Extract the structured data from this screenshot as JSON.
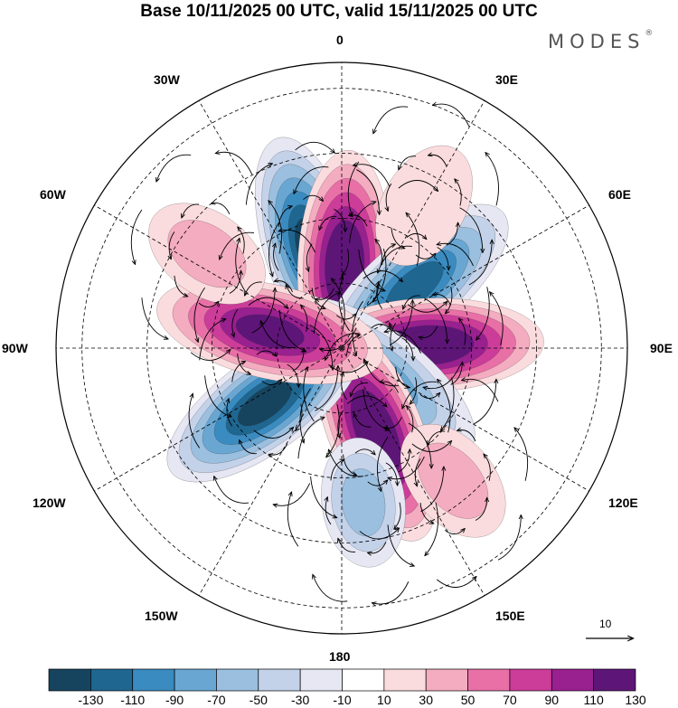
{
  "title": "Base 10/11/2025 00 UTC, valid 15/11/2025 00 UTC",
  "brand": {
    "name": "MODES",
    "mark": "®"
  },
  "longitude_labels": [
    {
      "id": "0",
      "text": "0"
    },
    {
      "id": "30E",
      "text": "30E"
    },
    {
      "id": "60E",
      "text": "60E"
    },
    {
      "id": "90E",
      "text": "90E"
    },
    {
      "id": "120E",
      "text": "120E"
    },
    {
      "id": "150E",
      "text": "150E"
    },
    {
      "id": "180",
      "text": "180"
    },
    {
      "id": "150W",
      "text": "150W"
    },
    {
      "id": "120W",
      "text": "120W"
    },
    {
      "id": "90W",
      "text": "90W"
    },
    {
      "id": "60W",
      "text": "60W"
    },
    {
      "id": "30W",
      "text": "30W"
    }
  ],
  "reference_vector": {
    "label": "10"
  },
  "colorbar": {
    "ticks": [
      "-130",
      "-110",
      "-90",
      "-70",
      "-50",
      "-30",
      "-10",
      "10",
      "30",
      "50",
      "70",
      "90",
      "110",
      "130"
    ],
    "colors": [
      "#16445f",
      "#1f6690",
      "#3a8bc0",
      "#69a7d2",
      "#9bbfdf",
      "#c3d2e9",
      "#e6e7f3",
      "#ffffff",
      "#fbdcde",
      "#f4acc0",
      "#e870a6",
      "#cc3c99",
      "#98208f",
      "#5e1578"
    ]
  },
  "anomaly_centers": [
    {
      "lon": -17,
      "colat": 24,
      "value": -140,
      "sign": "negative"
    },
    {
      "lon": 2,
      "colat": 19,
      "value": 150,
      "sign": "positive"
    },
    {
      "lon": 50,
      "colat": 22,
      "value": -120,
      "sign": "negative"
    },
    {
      "lon": 88,
      "colat": 20,
      "value": 140,
      "sign": "positive"
    },
    {
      "lon": 128,
      "colat": 11,
      "value": -90,
      "sign": "negative"
    },
    {
      "lon": 158,
      "colat": 21,
      "value": 140,
      "sign": "positive"
    },
    {
      "lon": -126,
      "colat": 22,
      "value": -140,
      "sign": "negative"
    },
    {
      "lon": -77,
      "colat": 17,
      "value": 120,
      "sign": "positive"
    },
    {
      "lon": 140,
      "colat": 40,
      "value": 40,
      "sign": "positive"
    },
    {
      "lon": 172,
      "colat": 36,
      "value": -60,
      "sign": "negative"
    },
    {
      "lon": -55,
      "colat": 38,
      "value": 40,
      "sign": "positive"
    },
    {
      "lon": 30,
      "colat": 38,
      "value": 20,
      "sign": "positive"
    }
  ]
}
